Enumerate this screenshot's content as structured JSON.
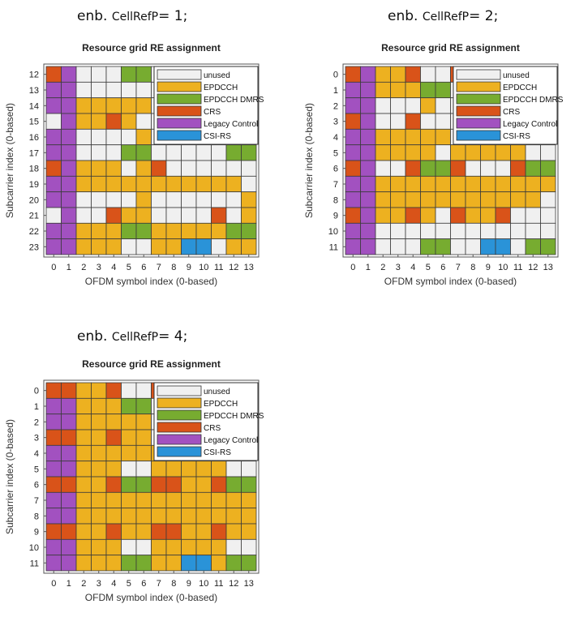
{
  "colors": {
    "unused": "#f0f0f0",
    "EPDCCH": "#edb120",
    "EPDCCH DMRS": "#77ac30",
    "CRS": "#d95319",
    "Legacy Control": "#a251c0",
    "CSI-RS": "#2a93d8"
  },
  "chart_data": [
    {
      "type": "heatmap",
      "caption": {
        "prefix": "enb.",
        "field": "CellRefP",
        "suffix": "= 1;"
      },
      "title": "Resource grid RE assignment",
      "xlabel": "OFDM symbol index (0-based)",
      "ylabel": "Subcarrier index (0-based)",
      "x_ticks": [
        "0",
        "1",
        "2",
        "3",
        "4",
        "5",
        "6",
        "7",
        "8",
        "9",
        "10",
        "11",
        "12",
        "13"
      ],
      "y_ticks": [
        "12",
        "13",
        "14",
        "15",
        "16",
        "17",
        "18",
        "19",
        "20",
        "21",
        "22",
        "23"
      ],
      "legend": [
        "unused",
        "EPDCCH",
        "EPDCCH DMRS",
        "CRS",
        "Legacy Control",
        "CSI-RS"
      ],
      "category_codes": {
        "U": "unused",
        "E": "EPDCCH",
        "D": "EPDCCH DMRS",
        "R": "CRS",
        "L": "Legacy Control",
        "S": "CSI-RS"
      },
      "grid": [
        "RLUUUDDUUUUUUU",
        "LLUUUUUUUUUUUU",
        "LLEEEEEUUUUUUU",
        "ULEEREUUUUUUUU",
        "LLUUUUEUUUUUEE",
        "LLUUUDDUUUUUDD",
        "RLEEEUERUUUUUU",
        "LLEEEEEEEEEEEU",
        "LLUUUUEUUUUUUE",
        "ULUUREEUUUURUE",
        "LLEEEDDEEEEEDD",
        "LLEEEUUEESSUEE"
      ]
    },
    {
      "type": "heatmap",
      "caption": {
        "prefix": "enb.",
        "field": "CellRefP",
        "suffix": "= 2;"
      },
      "title": "Resource grid RE assignment",
      "xlabel": "OFDM symbol index (0-based)",
      "ylabel": "Subcarrier index (0-based)",
      "x_ticks": [
        "0",
        "1",
        "2",
        "3",
        "4",
        "5",
        "6",
        "7",
        "8",
        "9",
        "10",
        "11",
        "12",
        "13"
      ],
      "y_ticks": [
        "0",
        "1",
        "2",
        "3",
        "4",
        "5",
        "6",
        "7",
        "8",
        "9",
        "10",
        "11"
      ],
      "legend": [
        "unused",
        "EPDCCH",
        "EPDCCH DMRS",
        "CRS",
        "Legacy Control",
        "CSI-RS"
      ],
      "category_codes": {
        "U": "unused",
        "E": "EPDCCH",
        "D": "EPDCCH DMRS",
        "R": "CRS",
        "L": "Legacy Control",
        "S": "CSI-RS"
      },
      "grid": [
        "RLEERUURUUUUUU",
        "LLEEEDDUUUUUUU",
        "LLUUUEUUUUUUUU",
        "RLUURUUUUUUUUU",
        "LLEEEEEUUUUUUE",
        "LLEEEEUEEEEEUU",
        "RLUURDDRUUURDD",
        "LLEEEEEEEEEEEE",
        "LLEEEEEEEEEEEU",
        "RLEEREUREERUUU",
        "LLUUUUUUUUUUUU",
        "LLUUUDDUUSSUDD"
      ]
    },
    {
      "type": "heatmap",
      "caption": {
        "prefix": "enb.",
        "field": "CellRefP",
        "suffix": "= 4;"
      },
      "title": "Resource grid RE assignment",
      "xlabel": "OFDM symbol index (0-based)",
      "ylabel": "Subcarrier index (0-based)",
      "x_ticks": [
        "0",
        "1",
        "2",
        "3",
        "4",
        "5",
        "6",
        "7",
        "8",
        "9",
        "10",
        "11",
        "12",
        "13"
      ],
      "y_ticks": [
        "0",
        "1",
        "2",
        "3",
        "4",
        "5",
        "6",
        "7",
        "8",
        "9",
        "10",
        "11"
      ],
      "legend": [
        "unused",
        "EPDCCH",
        "EPDCCH DMRS",
        "CRS",
        "Legacy Control",
        "CSI-RS"
      ],
      "category_codes": {
        "U": "unused",
        "E": "EPDCCH",
        "D": "EPDCCH DMRS",
        "R": "CRS",
        "L": "Legacy Control",
        "S": "CSI-RS"
      },
      "grid": [
        "RREERUURUUUUUU",
        "LLEEEDDUUUUUUU",
        "LLEEEEEUUUUUUU",
        "RREEREEUUUUUUU",
        "LLEEEEEEEEEEEE",
        "LLEEEUUEEEEEUU",
        "RREERDDRREERDD",
        "LLEEEEEEEEEEEE",
        "LLEEEEEEEEEEEE",
        "RREEREERREEREE",
        "LLEEEUUEEEEEUU",
        "LLEEEDDEESSEDD"
      ]
    }
  ]
}
